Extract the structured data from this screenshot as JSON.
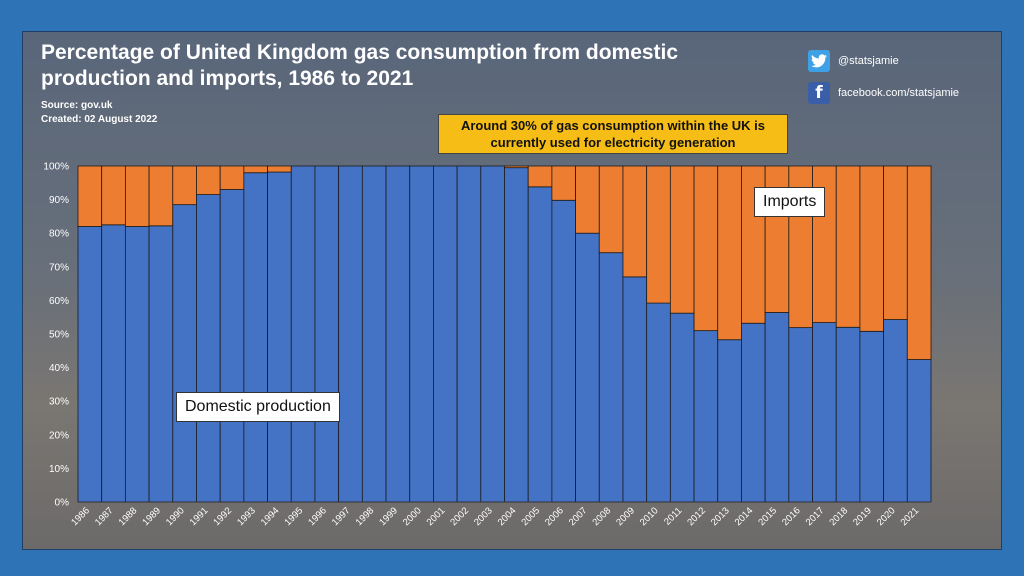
{
  "title": "Percentage of United Kingdom gas consumption from domestic production and imports, 1986 to 2021",
  "source": "Source: gov.uk",
  "created": "Created: 02 August 2022",
  "social": {
    "twitter": "@statsjamie",
    "facebook": "facebook.com/statsjamie"
  },
  "callout": "Around 30% of gas consumption within the UK is currently used for electricity generation",
  "labels": {
    "domestic": "Domestic production",
    "imports": "Imports"
  },
  "colors": {
    "domestic": "#4472c4",
    "imports": "#ed7d31",
    "callout": "#f5bd15",
    "background": "#2f73b7"
  },
  "chart_data": {
    "type": "bar",
    "stacked": true,
    "categories": [
      "1986",
      "1987",
      "1988",
      "1989",
      "1990",
      "1991",
      "1992",
      "1993",
      "1994",
      "1995",
      "1996",
      "1997",
      "1998",
      "1999",
      "2000",
      "2001",
      "2002",
      "2003",
      "2004",
      "2005",
      "2006",
      "2007",
      "2008",
      "2009",
      "2010",
      "2011",
      "2012",
      "2013",
      "2014",
      "2015",
      "2016",
      "2017",
      "2018",
      "2019",
      "2020",
      "2021"
    ],
    "series": [
      {
        "name": "Domestic production",
        "values": [
          82,
          82.5,
          82,
          82.2,
          88.5,
          91.5,
          93,
          98,
          98.2,
          100,
          100,
          100,
          100,
          100,
          100,
          100,
          100,
          100,
          99.5,
          93.8,
          89.8,
          80,
          74.2,
          67,
          59.2,
          56.2,
          51,
          48.3,
          53.2,
          56.4,
          51.9,
          53.4,
          52,
          50.8,
          54.3,
          42.4
        ]
      },
      {
        "name": "Imports",
        "values": [
          18,
          17.5,
          18,
          17.8,
          11.5,
          8.5,
          7,
          2,
          1.8,
          0,
          0,
          0,
          0,
          0,
          0,
          0,
          0,
          0,
          0.5,
          6.2,
          10.2,
          20,
          25.8,
          33,
          40.8,
          43.8,
          49,
          51.7,
          46.8,
          43.6,
          48.1,
          46.6,
          48,
          49.2,
          45.7,
          57.6
        ]
      }
    ],
    "yticks": [
      "0%",
      "10%",
      "20%",
      "30%",
      "40%",
      "50%",
      "60%",
      "70%",
      "80%",
      "90%",
      "100%"
    ],
    "ylim": [
      0,
      100
    ],
    "xlabel": "",
    "ylabel": ""
  }
}
